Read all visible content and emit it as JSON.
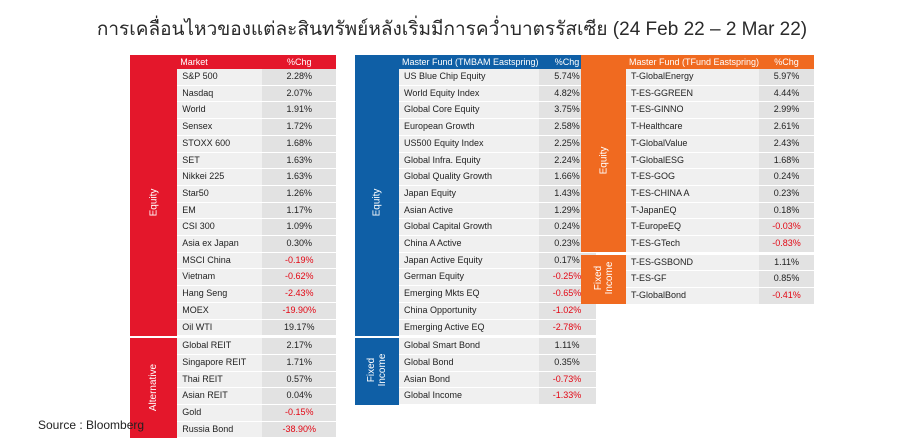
{
  "title": "การเคลื่อนไหวของแต่ละสินทรัพย์หลังเริ่มมีการคว่ำบาตรรัสเซีย (24 Feb 22 – 2 Mar 22)",
  "colors": {
    "market": "#e4172b",
    "tmbam": "#0f5fa6",
    "tfund": "#f06a20",
    "negative": "#e30613"
  },
  "tables": [
    {
      "header": {
        "name": "Market",
        "value": "%Chg"
      },
      "groups": [
        {
          "label": "Equity",
          "rows": [
            {
              "name": "S&P 500",
              "value": "2.28%"
            },
            {
              "name": "Nasdaq",
              "value": "2.07%"
            },
            {
              "name": "World",
              "value": "1.91%"
            },
            {
              "name": "Sensex",
              "value": "1.72%"
            },
            {
              "name": "STOXX 600",
              "value": "1.68%"
            },
            {
              "name": "SET",
              "value": "1.63%"
            },
            {
              "name": "Nikkei 225",
              "value": "1.63%"
            },
            {
              "name": "Star50",
              "value": "1.26%"
            },
            {
              "name": "EM",
              "value": "1.17%"
            },
            {
              "name": "CSI 300",
              "value": "1.09%"
            },
            {
              "name": "Asia ex Japan",
              "value": "0.30%"
            },
            {
              "name": "MSCI China",
              "value": "-0.19%"
            },
            {
              "name": "Vietnam",
              "value": "-0.62%"
            },
            {
              "name": "Hang Seng",
              "value": "-2.43%"
            },
            {
              "name": "MOEX",
              "value": "-19.90%"
            },
            {
              "name": "Oil WTI",
              "value": "19.17%"
            }
          ]
        },
        {
          "label": "Alternative",
          "rows": [
            {
              "name": "Global REIT",
              "value": "2.17%"
            },
            {
              "name": "Singapore REIT",
              "value": "1.71%"
            },
            {
              "name": "Thai REIT",
              "value": "0.57%"
            },
            {
              "name": "Asian REIT",
              "value": "0.04%"
            },
            {
              "name": "Gold",
              "value": "-0.15%"
            },
            {
              "name": "Russia Bond",
              "value": "-38.90%"
            }
          ]
        }
      ]
    },
    {
      "header": {
        "name": "Master Fund (TMBAM Eastspring)",
        "value": "%Chg"
      },
      "groups": [
        {
          "label": "Equity",
          "rows": [
            {
              "name": "US Blue Chip Equity",
              "value": "5.74%"
            },
            {
              "name": "World Equity Index",
              "value": "4.82%"
            },
            {
              "name": "Global Core Equity",
              "value": "3.75%"
            },
            {
              "name": "European Growth",
              "value": "2.58%"
            },
            {
              "name": "US500 Equity Index",
              "value": "2.25%"
            },
            {
              "name": "Global Infra. Equity",
              "value": "2.24%"
            },
            {
              "name": "Global Quality Growth",
              "value": "1.66%"
            },
            {
              "name": "Japan Equity",
              "value": "1.43%"
            },
            {
              "name": "Asian Active",
              "value": "1.29%"
            },
            {
              "name": "Global Capital Growth",
              "value": "0.24%"
            },
            {
              "name": "China A Active",
              "value": "0.23%"
            },
            {
              "name": "Japan Active Equity",
              "value": "0.17%"
            },
            {
              "name": "German Equity",
              "value": "-0.25%"
            },
            {
              "name": "Emerging Mkts EQ",
              "value": "-0.65%"
            },
            {
              "name": "China Opportunity",
              "value": "-1.02%"
            },
            {
              "name": "Emerging Active EQ",
              "value": "-2.78%"
            }
          ]
        },
        {
          "label": "Fixed Income",
          "rows": [
            {
              "name": "Global Smart Bond",
              "value": "1.11%"
            },
            {
              "name": "Global Bond",
              "value": "0.35%"
            },
            {
              "name": "Asian Bond",
              "value": "-0.73%"
            },
            {
              "name": "Global Income",
              "value": "-1.33%"
            }
          ]
        }
      ]
    },
    {
      "header": {
        "name": "Master Fund (TFund Eastspring)",
        "value": "%Chg"
      },
      "groups": [
        {
          "label": "Equity",
          "rows": [
            {
              "name": "T-GlobalEnergy",
              "value": "5.97%"
            },
            {
              "name": "T-ES-GGREEN",
              "value": "4.44%"
            },
            {
              "name": "T-ES-GINNO",
              "value": "2.99%"
            },
            {
              "name": "T-Healthcare",
              "value": "2.61%"
            },
            {
              "name": "T-GlobalValue",
              "value": "2.43%"
            },
            {
              "name": "T-GlobalESG",
              "value": "1.68%"
            },
            {
              "name": "T-ES-GOG",
              "value": "0.24%"
            },
            {
              "name": "T-ES-CHINA A",
              "value": "0.23%"
            },
            {
              "name": "T-JapanEQ",
              "value": "0.18%"
            },
            {
              "name": "T-EuropeEQ",
              "value": "-0.03%"
            },
            {
              "name": "T-ES-GTech",
              "value": "-0.83%"
            }
          ]
        },
        {
          "label": "Fixed Income",
          "rows": [
            {
              "name": "T-ES-GSBOND",
              "value": "1.11%"
            },
            {
              "name": "T-ES-GF",
              "value": "0.85%"
            },
            {
              "name": "T-GlobalBond",
              "value": "-0.41%"
            }
          ]
        }
      ]
    }
  ],
  "source": "Source : Bloomberg"
}
